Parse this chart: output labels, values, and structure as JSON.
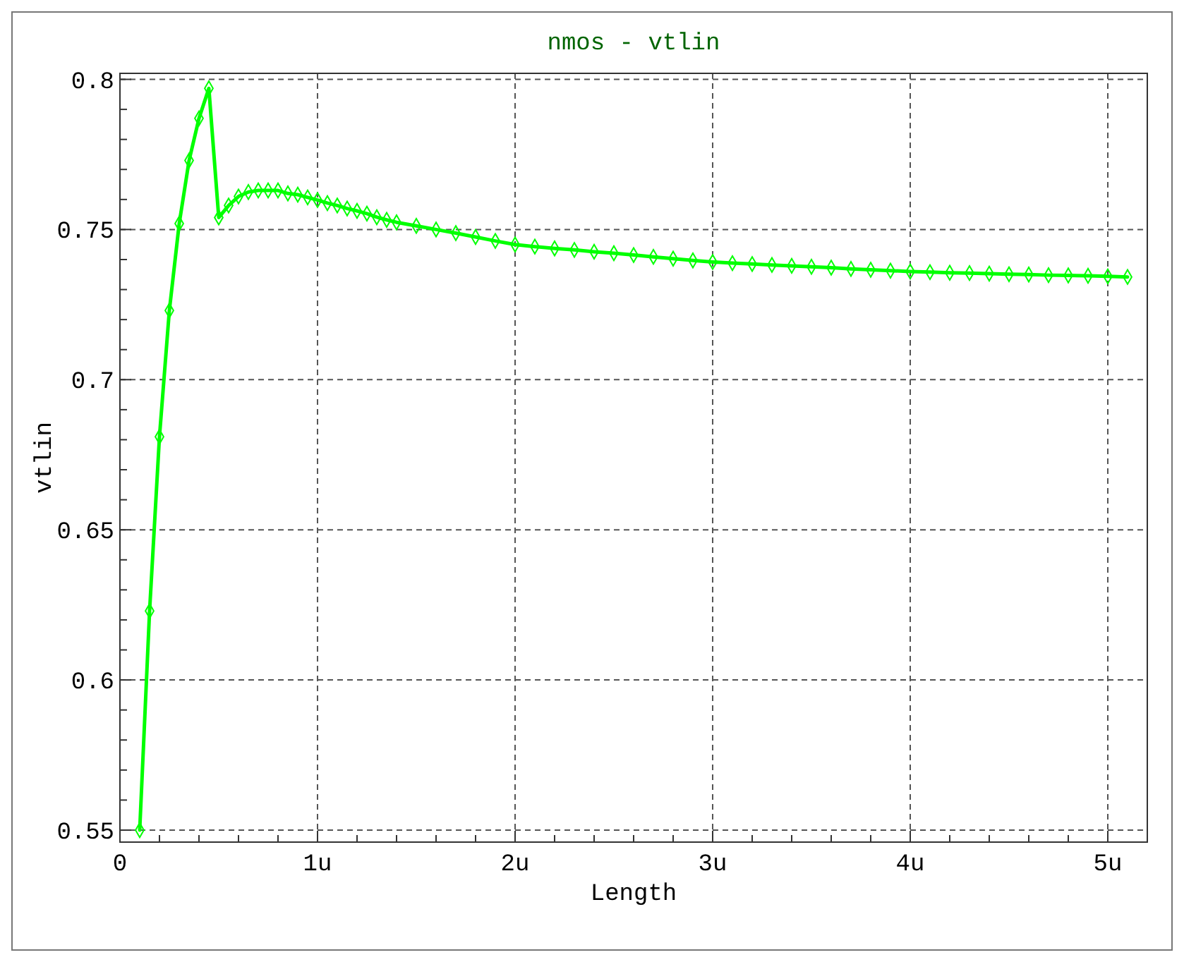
{
  "chart_data": {
    "type": "line",
    "title": "nmos - vtlin",
    "xlabel": "Length",
    "ylabel": "vtlin",
    "x": [
      0.1,
      0.15,
      0.2,
      0.25,
      0.3,
      0.35,
      0.4,
      0.45,
      0.5,
      0.55,
      0.6,
      0.65,
      0.7,
      0.75,
      0.8,
      0.85,
      0.9,
      0.95,
      1.0,
      1.05,
      1.1,
      1.15,
      1.2,
      1.25,
      1.3,
      1.35,
      1.4,
      1.5,
      1.6,
      1.7,
      1.8,
      1.9,
      2.0,
      2.1,
      2.2,
      2.3,
      2.4,
      2.5,
      2.6,
      2.7,
      2.8,
      2.9,
      3.0,
      3.1,
      3.2,
      3.3,
      3.4,
      3.5,
      3.6,
      3.7,
      3.8,
      3.9,
      4.0,
      4.1,
      4.2,
      4.3,
      4.4,
      4.5,
      4.6,
      4.7,
      4.8,
      4.9,
      5.0,
      5.1
    ],
    "series": [
      {
        "color": "#00ff00",
        "values": [
          0.55,
          0.623,
          0.681,
          0.723,
          0.752,
          0.773,
          0.787,
          0.797,
          0.754,
          0.758,
          0.761,
          0.7625,
          0.763,
          0.763,
          0.763,
          0.762,
          0.7616,
          0.7607,
          0.7598,
          0.7588,
          0.758,
          0.757,
          0.7562,
          0.7553,
          0.7541,
          0.7532,
          0.7524,
          0.7512,
          0.75,
          0.7488,
          0.7475,
          0.7462,
          0.745,
          0.7443,
          0.7437,
          0.7432,
          0.7426,
          0.7421,
          0.7415,
          0.7409,
          0.7403,
          0.7397,
          0.7392,
          0.7388,
          0.7385,
          0.7382,
          0.7379,
          0.7376,
          0.7373,
          0.7369,
          0.7366,
          0.7363,
          0.736,
          0.7358,
          0.7356,
          0.7355,
          0.7353,
          0.7351,
          0.735,
          0.7348,
          0.7347,
          0.7346,
          0.7344,
          0.7342
        ]
      }
    ],
    "xlim": [
      0,
      5.2
    ],
    "ylim": [
      0.546,
      0.802
    ],
    "xticks": [
      0,
      {
        "value": 0.2,
        "label": null
      },
      {
        "value": 0.4,
        "label": null
      },
      {
        "value": 0.6,
        "label": null
      },
      {
        "value": 0.8,
        "label": null
      },
      {
        "value": 1,
        "label": "1u"
      },
      {
        "value": 1.2,
        "label": null
      },
      {
        "value": 1.4,
        "label": null
      },
      {
        "value": 1.6,
        "label": null
      },
      {
        "value": 1.8,
        "label": null
      },
      {
        "value": 2,
        "label": "2u"
      },
      {
        "value": 2.2,
        "label": null
      },
      {
        "value": 2.4,
        "label": null
      },
      {
        "value": 2.6,
        "label": null
      },
      {
        "value": 2.8,
        "label": null
      },
      {
        "value": 3,
        "label": "3u"
      },
      {
        "value": 3.2,
        "label": null
      },
      {
        "value": 3.4,
        "label": null
      },
      {
        "value": 3.6,
        "label": null
      },
      {
        "value": 3.8,
        "label": null
      },
      {
        "value": 4,
        "label": "4u"
      },
      {
        "value": 4.2,
        "label": null
      },
      {
        "value": 4.4,
        "label": null
      },
      {
        "value": 4.6,
        "label": null
      },
      {
        "value": 4.8,
        "label": null
      },
      {
        "value": 5,
        "label": "5u"
      }
    ],
    "yticks": [
      0.55,
      {
        "value": 0.56,
        "label": null
      },
      {
        "value": 0.57,
        "label": null
      },
      {
        "value": 0.58,
        "label": null
      },
      {
        "value": 0.59,
        "label": null
      },
      0.6,
      {
        "value": 0.61,
        "label": null
      },
      {
        "value": 0.62,
        "label": null
      },
      {
        "value": 0.63,
        "label": null
      },
      {
        "value": 0.64,
        "label": null
      },
      0.65,
      {
        "value": 0.66,
        "label": null
      },
      {
        "value": 0.67,
        "label": null
      },
      {
        "value": 0.68,
        "label": null
      },
      {
        "value": 0.69,
        "label": null
      },
      0.7,
      {
        "value": 0.71,
        "label": null
      },
      {
        "value": 0.72,
        "label": null
      },
      {
        "value": 0.73,
        "label": null
      },
      {
        "value": 0.74,
        "label": null
      },
      0.75,
      {
        "value": 0.76,
        "label": null
      },
      {
        "value": 0.77,
        "label": null
      },
      {
        "value": 0.78,
        "label": null
      },
      {
        "value": 0.79,
        "label": null
      },
      0.8
    ],
    "grid": true,
    "marker": "diamond",
    "line_style": "solid"
  }
}
